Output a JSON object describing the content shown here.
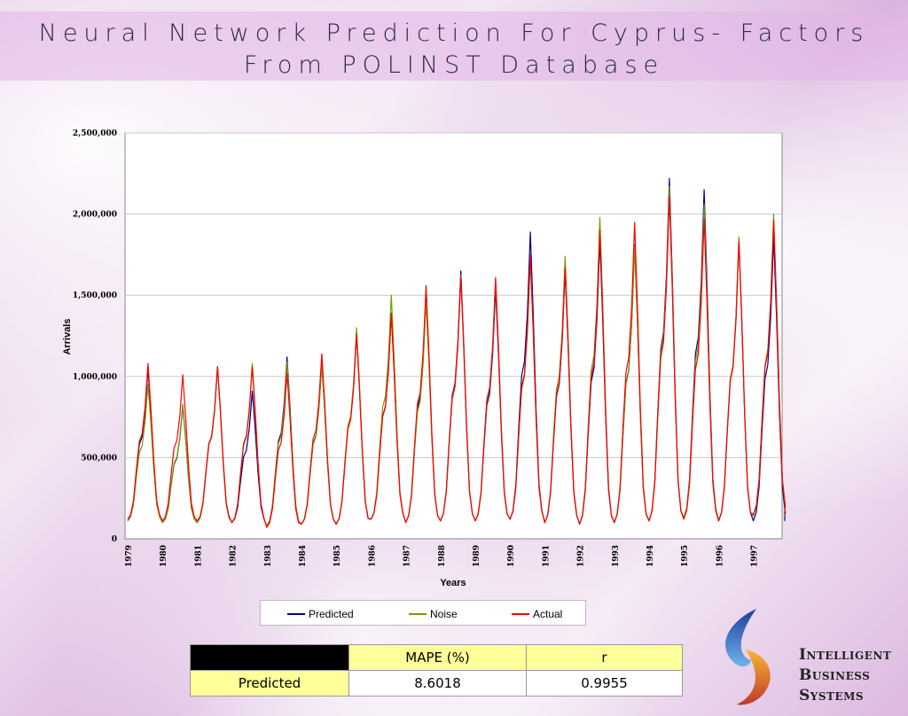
{
  "title_line1": "Neural Network Prediction For Cyprus- Factors",
  "title_line2": "From POLINST Database",
  "chart_data": {
    "type": "line",
    "xlabel": "Years",
    "ylabel": "Arrivals",
    "ylim": [
      0,
      2500000
    ],
    "yticks": [
      "0",
      "500,000",
      "1,000,000",
      "1,500,000",
      "2,000,000",
      "2,500,000"
    ],
    "years": [
      "1979",
      "1980",
      "1981",
      "1982",
      "1983",
      "1984",
      "1985",
      "1986",
      "1987",
      "1988",
      "1989",
      "1990",
      "1991",
      "1992",
      "1993",
      "1994",
      "1995",
      "1996",
      "1997"
    ],
    "grid": true,
    "legend": "bottom",
    "series": [
      {
        "name": "Predicted",
        "color": "#00008b",
        "peaks": [
          1050000,
          820000,
          1060000,
          910000,
          1120000,
          1080000,
          1270000,
          1390000,
          1510000,
          1650000,
          1540000,
          1890000,
          1650000,
          1840000,
          1810000,
          2220000,
          2150000,
          1840000,
          1860000
        ],
        "troughs": [
          110000,
          100000,
          100000,
          100000,
          80000,
          90000,
          90000,
          120000,
          100000,
          110000,
          110000,
          120000,
          100000,
          90000,
          100000,
          110000,
          130000,
          110000,
          110000
        ]
      },
      {
        "name": "Noise",
        "color": "#7a9a00",
        "peaks": [
          950000,
          830000,
          1060000,
          1080000,
          1090000,
          1070000,
          1300000,
          1500000,
          1460000,
          1620000,
          1590000,
          1720000,
          1740000,
          1980000,
          1800000,
          2170000,
          2060000,
          1860000,
          2000000
        ],
        "troughs": [
          110000,
          100000,
          100000,
          100000,
          80000,
          90000,
          90000,
          120000,
          100000,
          110000,
          110000,
          120000,
          100000,
          90000,
          100000,
          110000,
          130000,
          110000,
          140000
        ]
      },
      {
        "name": "Actual",
        "color": "#ff0000",
        "peaks": [
          1080000,
          1010000,
          1060000,
          1060000,
          1020000,
          1140000,
          1260000,
          1380000,
          1560000,
          1610000,
          1610000,
          1750000,
          1670000,
          1900000,
          1950000,
          2110000,
          1970000,
          1830000,
          1960000
        ],
        "troughs": [
          120000,
          110000,
          110000,
          100000,
          70000,
          90000,
          90000,
          120000,
          100000,
          110000,
          110000,
          120000,
          100000,
          90000,
          100000,
          110000,
          120000,
          110000,
          150000
        ]
      }
    ]
  },
  "stats_table": {
    "col_mape": "MAPE (%)",
    "col_r": "r",
    "row_label": "Predicted",
    "mape": "8.6018",
    "r": "0.9955"
  },
  "logo": {
    "line1": "Intelligent",
    "line2": "Business",
    "line3": "Systems"
  }
}
